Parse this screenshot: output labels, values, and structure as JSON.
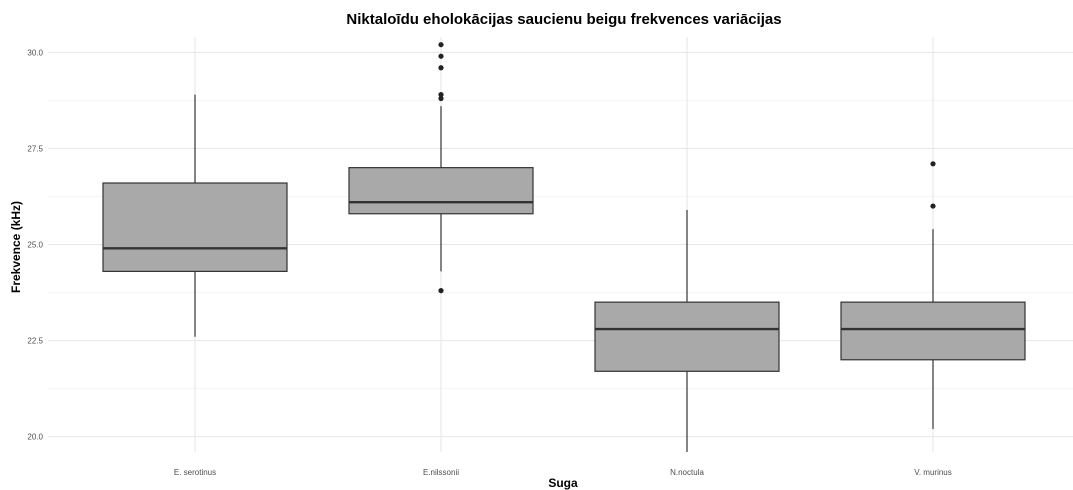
{
  "chart_data": {
    "type": "boxplot",
    "title": "Niktaloīdu eholokācijas saucienu beigu frekvences variācijas",
    "xlabel": "Suga",
    "ylabel": "Frekvence (kHz)",
    "ylim": [
      19.6,
      30.4
    ],
    "y_ticks": [
      "20.0",
      "22.5",
      "25.0",
      "27.5",
      "30.0"
    ],
    "y_tick_values": [
      20.0,
      22.5,
      25.0,
      27.5,
      30.0
    ],
    "y_minor_gridlines": [
      21.25,
      23.75,
      26.25,
      28.75
    ],
    "grid": true,
    "categories": [
      "E. serotinus",
      "E.nilssonii",
      "N.noctula",
      "V. murinus"
    ],
    "boxes": [
      {
        "category": "E. serotinus",
        "whisker_low": 22.6,
        "q1": 24.3,
        "median": 24.9,
        "q3": 26.6,
        "whisker_high": 28.9,
        "outliers": []
      },
      {
        "category": "E.nilssonii",
        "whisker_low": 24.3,
        "q1": 25.8,
        "median": 26.1,
        "q3": 27.0,
        "whisker_high": 28.6,
        "outliers": [
          30.2,
          29.9,
          29.6,
          28.9,
          28.8,
          23.8
        ]
      },
      {
        "category": "N.noctula",
        "whisker_low": 19.6,
        "q1": 21.7,
        "median": 22.8,
        "q3": 23.5,
        "whisker_high": 25.9,
        "outliers": []
      },
      {
        "category": "V. murinus",
        "whisker_low": 20.2,
        "q1": 22.0,
        "median": 22.8,
        "q3": 23.5,
        "whisker_high": 25.4,
        "outliers": [
          27.1,
          26.0
        ]
      }
    ],
    "colors": {
      "box_fill": "#a9a9a9",
      "box_stroke": "#333333",
      "grid_major": "#e6e6e6",
      "grid_minor": "#f2f2f2",
      "outlier": "#222222"
    }
  }
}
